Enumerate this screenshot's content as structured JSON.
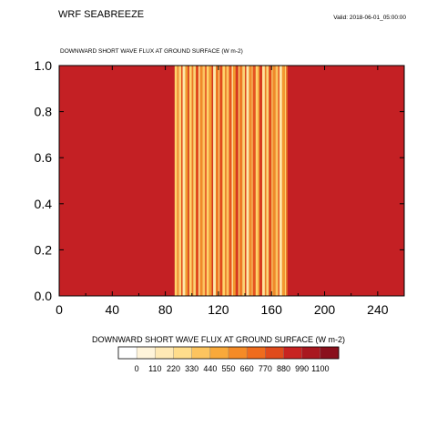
{
  "header": {
    "title": "WRF SEABREEZE",
    "valid": "Valid: 2018-06-01_05:00:00"
  },
  "colorbar": {
    "title": "DOWNWARD SHORT WAVE FLUX AT GROUND SURFACE  (W m-2)",
    "labels": [
      "0",
      "110",
      "220",
      "330",
      "440",
      "550",
      "660",
      "770",
      "880",
      "990",
      "1100"
    ],
    "colors": [
      "#ffffff",
      "#fff4da",
      "#ffe9b5",
      "#ffdd8c",
      "#fcc45f",
      "#f9a93a",
      "#f58b27",
      "#ef6c1d",
      "#e04b1c",
      "#c82321",
      "#a9181f",
      "#8a101c"
    ]
  },
  "chart_data": {
    "type": "heatmap",
    "title": "DOWNWARD SHORT WAVE FLUX AT GROUND SURFACE   (W m-2)",
    "xlabel": "",
    "ylabel": "",
    "xlim": [
      0,
      260
    ],
    "ylim": [
      0,
      1
    ],
    "xticks": [
      0,
      40,
      80,
      120,
      160,
      200,
      240
    ],
    "yticks": [
      "0.0",
      "0.2",
      "0.4",
      "0.6",
      "0.8",
      "1.0"
    ],
    "background_color": "#c42024",
    "varying_band": [
      87,
      172
    ],
    "stripes": [
      {
        "x": 87,
        "color": "#ffd36a"
      },
      {
        "x": 89,
        "color": "#f08a2a"
      },
      {
        "x": 90,
        "color": "#fbd373"
      },
      {
        "x": 92,
        "color": "#e6541f"
      },
      {
        "x": 93,
        "color": "#fde8a8"
      },
      {
        "x": 95,
        "color": "#f3982e"
      },
      {
        "x": 97,
        "color": "#d63a1f"
      },
      {
        "x": 98,
        "color": "#ffd36a"
      },
      {
        "x": 100,
        "color": "#ee7a25"
      },
      {
        "x": 101,
        "color": "#fbd373"
      },
      {
        "x": 103,
        "color": "#e04b1c"
      },
      {
        "x": 105,
        "color": "#ffe39a"
      },
      {
        "x": 106,
        "color": "#f08a2a"
      },
      {
        "x": 108,
        "color": "#fcc45f"
      },
      {
        "x": 110,
        "color": "#e6541f"
      },
      {
        "x": 111,
        "color": "#ffd36a"
      },
      {
        "x": 113,
        "color": "#f3982e"
      },
      {
        "x": 115,
        "color": "#d63a1f"
      },
      {
        "x": 116,
        "color": "#fde8a8"
      },
      {
        "x": 118,
        "color": "#ee7a25"
      },
      {
        "x": 120,
        "color": "#fbd373"
      },
      {
        "x": 121,
        "color": "#e04b1c"
      },
      {
        "x": 123,
        "color": "#ffd36a"
      },
      {
        "x": 125,
        "color": "#f08a2a"
      },
      {
        "x": 126,
        "color": "#fcc45f"
      },
      {
        "x": 128,
        "color": "#e6541f"
      },
      {
        "x": 130,
        "color": "#ffe39a"
      },
      {
        "x": 131,
        "color": "#f3982e"
      },
      {
        "x": 133,
        "color": "#d63a1f"
      },
      {
        "x": 135,
        "color": "#ffd36a"
      },
      {
        "x": 136,
        "color": "#ee7a25"
      },
      {
        "x": 138,
        "color": "#fbd373"
      },
      {
        "x": 140,
        "color": "#e04b1c"
      },
      {
        "x": 141,
        "color": "#fde8a8"
      },
      {
        "x": 143,
        "color": "#f08a2a"
      },
      {
        "x": 145,
        "color": "#fcc45f"
      },
      {
        "x": 146,
        "color": "#e6541f"
      },
      {
        "x": 148,
        "color": "#ffd36a"
      },
      {
        "x": 150,
        "color": "#f3982e"
      },
      {
        "x": 151,
        "color": "#d63a1f"
      },
      {
        "x": 153,
        "color": "#ffe39a"
      },
      {
        "x": 155,
        "color": "#ee7a25"
      },
      {
        "x": 156,
        "color": "#fbd373"
      },
      {
        "x": 158,
        "color": "#e04b1c"
      },
      {
        "x": 160,
        "color": "#ffd36a"
      },
      {
        "x": 161,
        "color": "#f08a2a"
      },
      {
        "x": 163,
        "color": "#fcc45f"
      },
      {
        "x": 165,
        "color": "#e6541f"
      },
      {
        "x": 166,
        "color": "#fde8a8"
      },
      {
        "x": 168,
        "color": "#f3982e"
      },
      {
        "x": 170,
        "color": "#ffd36a"
      },
      {
        "x": 171,
        "color": "#ee7a25"
      }
    ]
  }
}
